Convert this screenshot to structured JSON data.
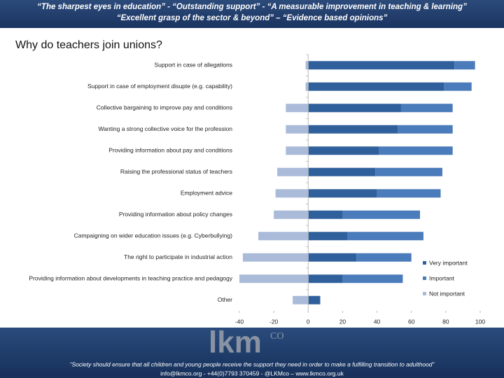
{
  "header": {
    "lines": [
      "“The sharpest eyes in education” - “Outstanding support” - “A measurable improvement in teaching & learning”",
      "“Excellent grasp of the sector & beyond” – “Evidence based opinions”"
    ]
  },
  "chart_data": {
    "type": "bar",
    "orientation": "horizontal",
    "stacked": true,
    "title": "Why do teachers join unions?",
    "categories": [
      "Support in case of allegations",
      "Support in case of employment disupte (e.g. capability)",
      "Collective bargaining to improve pay and conditions",
      "Wanting a strong collective voice for the profession",
      "Providing information about pay and conditions",
      "Raising the professional status of teachers",
      "Employment advice",
      "Providing information about policy changes",
      "Campaigning on wider education issues (e.g. Cyberbullying)",
      "The right to participate in industrial action",
      "Providing information about developments in teaching practice and pedagogy",
      "Other"
    ],
    "series": [
      {
        "name": "Very important",
        "color": "#30609c",
        "values": [
          85,
          79,
          54,
          52,
          41,
          39,
          40,
          20,
          23,
          28,
          20,
          7
        ]
      },
      {
        "name": "Important",
        "color": "#4a7bbb",
        "values": [
          12,
          16,
          30,
          32,
          43,
          39,
          37,
          45,
          44,
          32,
          35,
          0
        ]
      },
      {
        "name": "Not important",
        "color": "#a9bbd9",
        "values": [
          -1.5,
          -1.5,
          -13,
          -13,
          -13,
          -18,
          -19,
          -20,
          -29,
          -38,
          -40,
          -9
        ]
      }
    ],
    "xlim": [
      -40,
      100
    ],
    "xticks": [
      -40,
      -20,
      0,
      20,
      40,
      60,
      80,
      100
    ],
    "legend": "lower right"
  },
  "footer": {
    "logo": "lkm",
    "logo_suffix": "CO",
    "quote": "“Society should ensure that all children and young people receive the support they need in order to make a fulfilling transition to adulthood”",
    "contact": "info@lkmco.org - +44(0)7793 370459 - @LKMco – www.lkmco.org.uk"
  }
}
